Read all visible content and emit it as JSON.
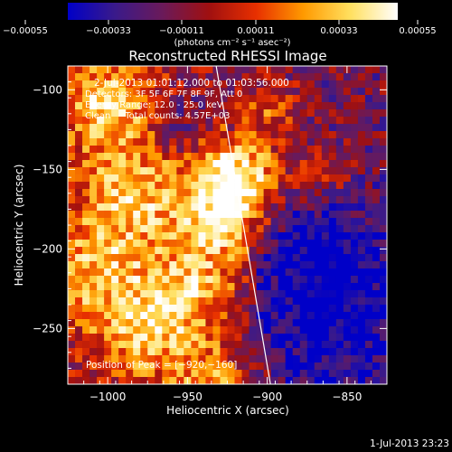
{
  "chart_data": {
    "type": "heatmap",
    "title": "Reconstructed RHESSI Image",
    "xlabel": "Heliocentric X (arcsec)",
    "ylabel": "Heliocentric Y (arcsec)",
    "xlim": [
      -1025,
      -825
    ],
    "ylim": [
      -285,
      -85
    ],
    "x_ticks": [
      -1000,
      -950,
      -900,
      -850
    ],
    "y_ticks": [
      -100,
      -150,
      -200,
      -250
    ],
    "x_tick_labels": [
      "−1000",
      "−950",
      "−900",
      "−850"
    ],
    "y_tick_labels": [
      "−100",
      "−150",
      "−200",
      "−250"
    ],
    "colorbar": {
      "range": [
        -0.00055,
        0.00055
      ],
      "tick_labels": [
        "−0.00055",
        "−0.00033",
        "−0.00011",
        "0.00011",
        "0.00033",
        "0.00055"
      ],
      "units_label": "(photons cm⁻² s⁻¹ asec⁻²)",
      "colormap": [
        "#0000c8",
        "#3a1a8a",
        "#6a1a5a",
        "#a01010",
        "#e83000",
        "#ff9a00",
        "#ffe060",
        "#ffffff"
      ]
    },
    "annotations": [
      "2-Jul-2013 01:01:12.000 to 01:03:56.000",
      "Detectors: 3F 5F 6F 7F 8F 9F, Att 0",
      "Energy Range: 12.0 - 25.0 keV",
      "Clean     Total counts: 4.57E+03"
    ],
    "peak_label": "Position of Peak = [−920,−160]",
    "peak": [
      -920,
      -160
    ],
    "limb_line": [
      [
        -932,
        -85
      ],
      [
        -898,
        -285
      ]
    ],
    "emission_sources": [
      {
        "x": -925,
        "y": -175,
        "sigma": 22,
        "amp": 1.0
      },
      {
        "x": -915,
        "y": -150,
        "sigma": 16,
        "amp": 0.75
      },
      {
        "x": -1000,
        "y": -110,
        "sigma": 20,
        "amp": 0.8
      },
      {
        "x": -985,
        "y": -165,
        "sigma": 22,
        "amp": 0.7
      },
      {
        "x": -1005,
        "y": -215,
        "sigma": 24,
        "amp": 0.7
      },
      {
        "x": -975,
        "y": -255,
        "sigma": 20,
        "amp": 0.65
      },
      {
        "x": -945,
        "y": -225,
        "sigma": 20,
        "amp": 0.7
      },
      {
        "x": -900,
        "y": -110,
        "sigma": 14,
        "amp": 0.5
      },
      {
        "x": -865,
        "y": -155,
        "sigma": 14,
        "amp": 0.4
      },
      {
        "x": -935,
        "y": -280,
        "sigma": 16,
        "amp": 0.55
      }
    ],
    "low_regions": [
      {
        "x": -860,
        "y": -235,
        "sigma": 40,
        "amp": 0.9
      },
      {
        "x": -955,
        "y": -120,
        "sigma": 14,
        "amp": 0.5
      },
      {
        "x": -880,
        "y": -190,
        "sigma": 22,
        "amp": 0.4
      }
    ]
  },
  "footer": {
    "timestamp": "1-Jul-2013 23:23"
  }
}
